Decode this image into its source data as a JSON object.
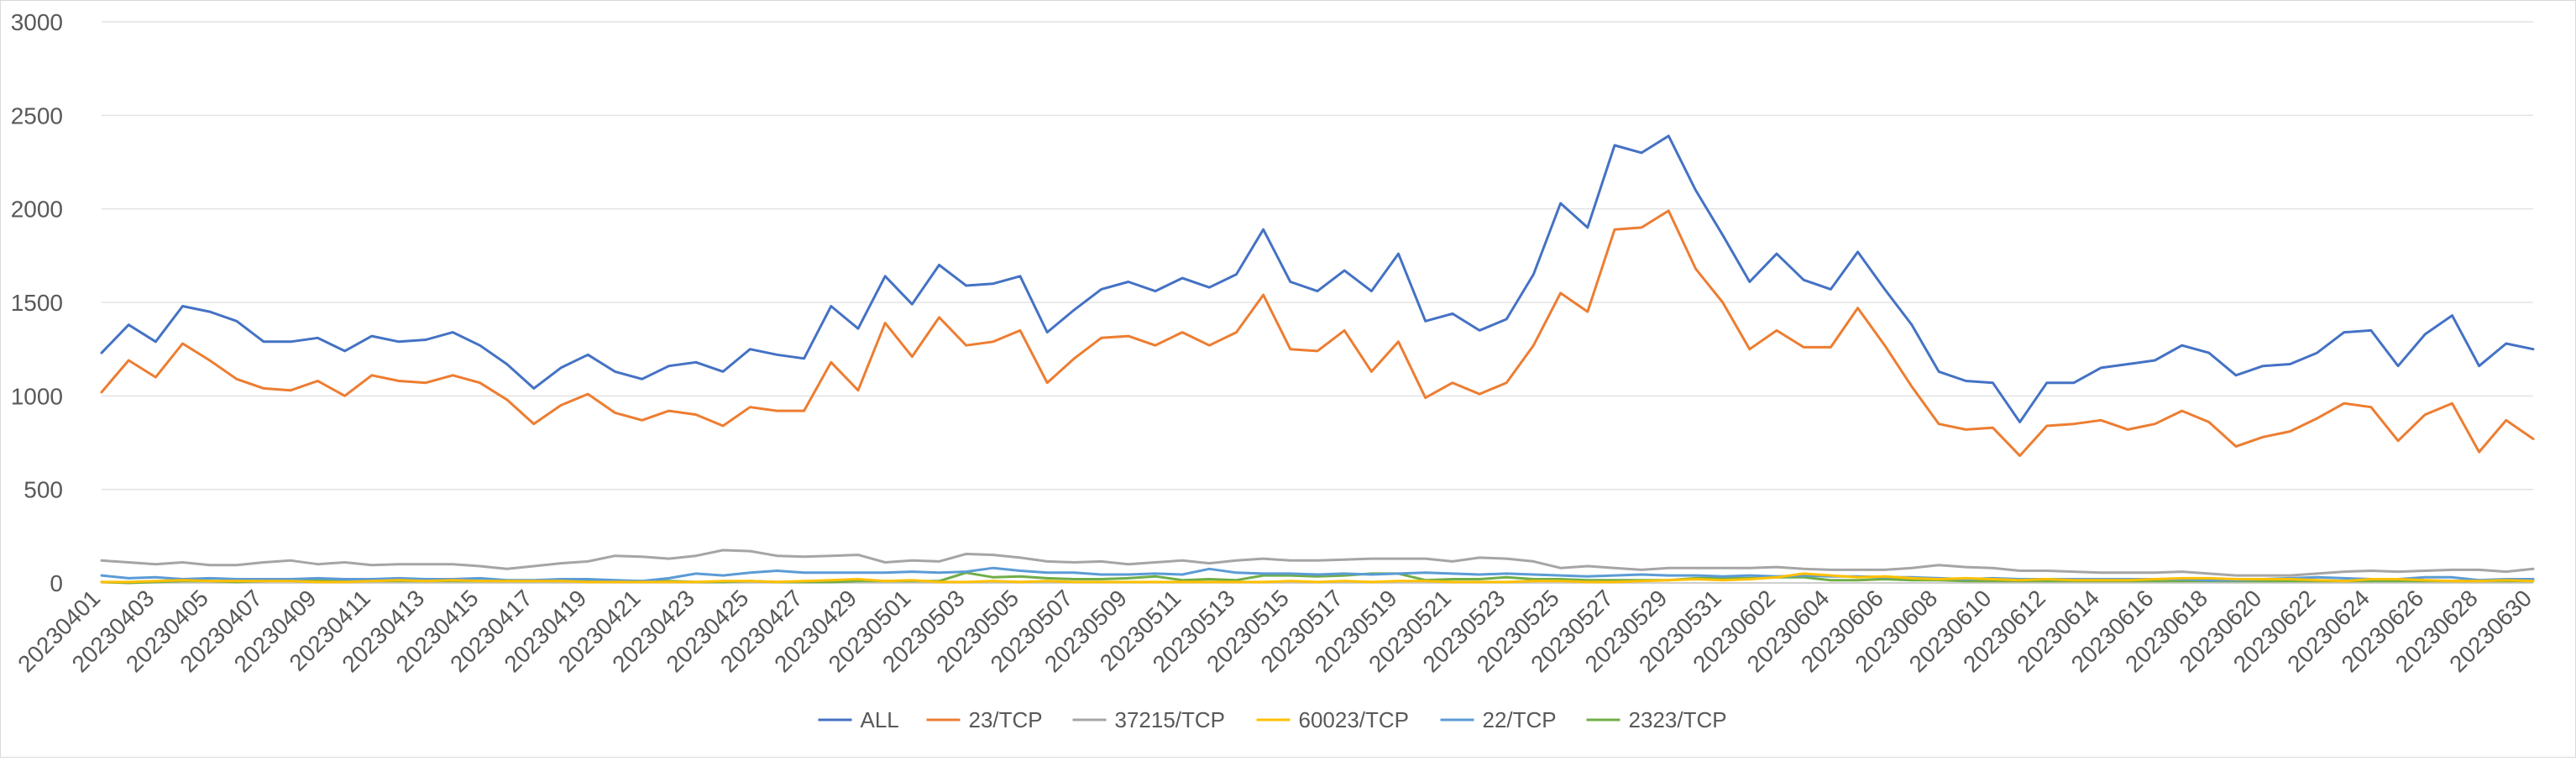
{
  "chart_data": {
    "type": "line",
    "title": "",
    "xlabel": "",
    "ylabel": "",
    "ylim": [
      0,
      3000
    ],
    "yticks": [
      0,
      500,
      1000,
      1500,
      2000,
      2500,
      3000
    ],
    "grid": "horizontal",
    "legend_position": "bottom",
    "x": [
      "20230401",
      "20230402",
      "20230403",
      "20230404",
      "20230405",
      "20230406",
      "20230407",
      "20230408",
      "20230409",
      "20230410",
      "20230411",
      "20230412",
      "20230413",
      "20230414",
      "20230415",
      "20230416",
      "20230417",
      "20230418",
      "20230419",
      "20230420",
      "20230421",
      "20230422",
      "20230423",
      "20230424",
      "20230425",
      "20230426",
      "20230427",
      "20230428",
      "20230429",
      "20230430",
      "20230501",
      "20230502",
      "20230503",
      "20230504",
      "20230505",
      "20230506",
      "20230507",
      "20230508",
      "20230509",
      "20230510",
      "20230511",
      "20230512",
      "20230513",
      "20230514",
      "20230515",
      "20230516",
      "20230517",
      "20230518",
      "20230519",
      "20230520",
      "20230521",
      "20230522",
      "20230523",
      "20230524",
      "20230525",
      "20230526",
      "20230527",
      "20230528",
      "20230529",
      "20230530",
      "20230531",
      "20230601",
      "20230602",
      "20230603",
      "20230604",
      "20230605",
      "20230606",
      "20230607",
      "20230608",
      "20230609",
      "20230610",
      "20230611",
      "20230612",
      "20230613",
      "20230614",
      "20230615",
      "20230616",
      "20230617",
      "20230618",
      "20230619",
      "20230620",
      "20230621",
      "20230622",
      "20230623",
      "20230624",
      "20230625",
      "20230626",
      "20230627",
      "20230628",
      "20230629",
      "20230630"
    ],
    "x_tick_labels": [
      "20230401",
      "20230403",
      "20230405",
      "20230407",
      "20230409",
      "20230411",
      "20230413",
      "20230415",
      "20230417",
      "20230419",
      "20230421",
      "20230423",
      "20230425",
      "20230427",
      "20230429",
      "20230501",
      "20230503",
      "20230505",
      "20230507",
      "20230509",
      "20230511",
      "20230513",
      "20230515",
      "20230517",
      "20230519",
      "20230521",
      "20230523",
      "20230525",
      "20230527",
      "20230529",
      "20230531",
      "20230602",
      "20230604",
      "20230606",
      "20230608",
      "20230610",
      "20230612",
      "20230614",
      "20230616",
      "20230618",
      "20230620",
      "20230622",
      "20230624",
      "20230626",
      "20230628",
      "20230630"
    ],
    "series": [
      {
        "name": "ALL",
        "color": "#4472C4",
        "values": [
          1230,
          1380,
          1290,
          1480,
          1450,
          1400,
          1290,
          1290,
          1310,
          1240,
          1320,
          1290,
          1300,
          1340,
          1270,
          1170,
          1040,
          1150,
          1220,
          1130,
          1090,
          1160,
          1180,
          1130,
          1250,
          1220,
          1200,
          1480,
          1360,
          1640,
          1490,
          1700,
          1590,
          1600,
          1640,
          1340,
          1460,
          1570,
          1610,
          1560,
          1630,
          1580,
          1650,
          1890,
          1610,
          1560,
          1670,
          1560,
          1760,
          1400,
          1440,
          1350,
          1410,
          1650,
          2030,
          1900,
          2340,
          2300,
          2390,
          2100,
          1860,
          1610,
          1760,
          1620,
          1570,
          1770,
          1570,
          1380,
          1130,
          1080,
          1070,
          860,
          1070,
          1070,
          1150,
          1170,
          1190,
          1270,
          1230,
          1110,
          1160,
          1170,
          1230,
          1340,
          1350,
          1160,
          1330,
          1430,
          1160,
          1280,
          1250
        ]
      },
      {
        "name": "23/TCP",
        "color": "#ED7D31",
        "values": [
          1020,
          1190,
          1100,
          1280,
          1190,
          1090,
          1040,
          1030,
          1080,
          1000,
          1110,
          1080,
          1070,
          1110,
          1070,
          980,
          850,
          950,
          1010,
          910,
          870,
          920,
          900,
          840,
          940,
          920,
          920,
          1180,
          1030,
          1390,
          1210,
          1420,
          1270,
          1290,
          1350,
          1070,
          1200,
          1310,
          1320,
          1270,
          1340,
          1270,
          1340,
          1540,
          1250,
          1240,
          1350,
          1130,
          1290,
          990,
          1070,
          1010,
          1070,
          1270,
          1550,
          1450,
          1890,
          1900,
          1990,
          1680,
          1500,
          1250,
          1350,
          1260,
          1260,
          1470,
          1270,
          1050,
          850,
          820,
          830,
          680,
          840,
          850,
          870,
          820,
          850,
          920,
          860,
          730,
          780,
          810,
          880,
          960,
          940,
          760,
          900,
          960,
          700,
          870,
          770
        ]
      },
      {
        "name": "37215/TCP",
        "color": "#A5A5A5",
        "values": [
          120,
          110,
          100,
          110,
          95,
          95,
          110,
          120,
          100,
          110,
          95,
          100,
          100,
          100,
          90,
          75,
          90,
          105,
          115,
          145,
          140,
          130,
          145,
          175,
          170,
          145,
          140,
          145,
          150,
          110,
          120,
          115,
          155,
          150,
          135,
          115,
          110,
          115,
          100,
          110,
          120,
          105,
          120,
          130,
          120,
          120,
          125,
          130,
          130,
          130,
          115,
          135,
          130,
          115,
          80,
          90,
          80,
          70,
          80,
          80,
          80,
          80,
          85,
          75,
          70,
          70,
          70,
          80,
          95,
          85,
          80,
          65,
          65,
          60,
          55,
          55,
          55,
          60,
          50,
          40,
          40,
          40,
          50,
          60,
          65,
          60,
          65,
          70,
          70,
          60,
          75
        ]
      },
      {
        "name": "60023/TCP",
        "color": "#FFC000",
        "values": [
          5,
          5,
          10,
          15,
          10,
          10,
          10,
          10,
          5,
          5,
          10,
          15,
          10,
          15,
          10,
          10,
          10,
          10,
          5,
          5,
          5,
          5,
          5,
          10,
          10,
          5,
          10,
          15,
          20,
          10,
          15,
          5,
          5,
          10,
          5,
          10,
          5,
          5,
          5,
          5,
          5,
          5,
          5,
          5,
          10,
          5,
          10,
          5,
          10,
          10,
          5,
          5,
          5,
          10,
          10,
          5,
          5,
          10,
          15,
          20,
          15,
          20,
          30,
          50,
          40,
          30,
          35,
          25,
          20,
          25,
          20,
          15,
          20,
          15,
          15,
          15,
          20,
          25,
          25,
          20,
          20,
          20,
          15,
          10,
          20,
          20,
          15,
          10,
          10,
          15,
          10
        ]
      },
      {
        "name": "22/TCP",
        "color": "#5B9BD5",
        "values": [
          40,
          25,
          30,
          20,
          25,
          20,
          20,
          20,
          25,
          20,
          20,
          25,
          20,
          20,
          25,
          15,
          15,
          20,
          20,
          15,
          10,
          25,
          50,
          40,
          55,
          65,
          55,
          55,
          55,
          55,
          60,
          55,
          60,
          80,
          65,
          55,
          55,
          45,
          45,
          50,
          45,
          75,
          55,
          50,
          50,
          45,
          50,
          45,
          50,
          55,
          50,
          45,
          50,
          45,
          40,
          35,
          40,
          45,
          40,
          40,
          35,
          40,
          35,
          40,
          35,
          35,
          30,
          30,
          25,
          20,
          25,
          20,
          20,
          20,
          20,
          20,
          20,
          20,
          15,
          15,
          20,
          25,
          30,
          25,
          20,
          20,
          30,
          30,
          15,
          20,
          20
        ]
      },
      {
        "name": "2323/TCP",
        "color": "#70AD47",
        "values": [
          5,
          0,
          5,
          10,
          10,
          5,
          10,
          15,
          15,
          10,
          10,
          10,
          10,
          10,
          10,
          10,
          10,
          10,
          10,
          10,
          10,
          10,
          5,
          5,
          10,
          5,
          5,
          5,
          10,
          10,
          10,
          10,
          55,
          30,
          35,
          25,
          20,
          20,
          25,
          35,
          15,
          20,
          15,
          40,
          40,
          35,
          40,
          50,
          50,
          15,
          20,
          20,
          30,
          20,
          20,
          15,
          15,
          15,
          15,
          25,
          25,
          25,
          30,
          30,
          15,
          15,
          20,
          15,
          15,
          10,
          10,
          10,
          10,
          10,
          10,
          10,
          10,
          10,
          10,
          10,
          10,
          10,
          10,
          10,
          10,
          10,
          10,
          10,
          10,
          10,
          10
        ]
      }
    ]
  }
}
